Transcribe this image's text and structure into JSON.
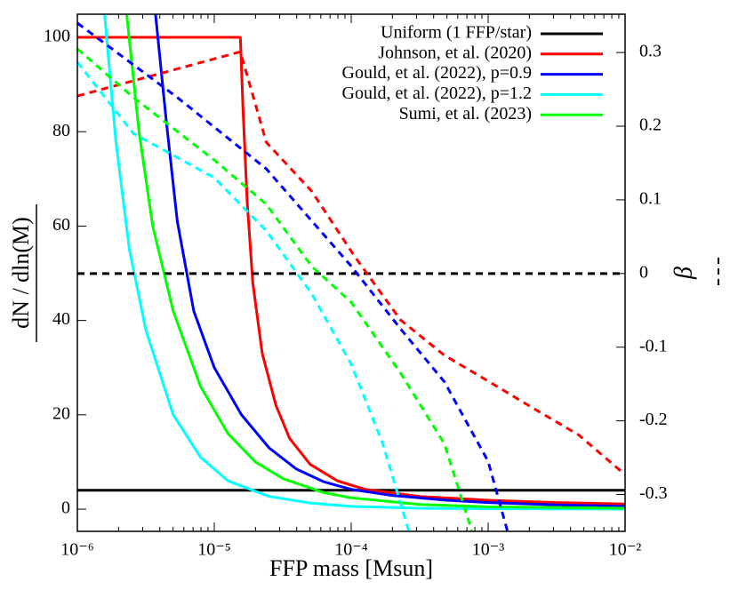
{
  "chart_data": {
    "type": "line",
    "xlabel": "FFP mass [Msun]",
    "ylabel": "dN / dln(M)",
    "y2label": "β",
    "xscale": "log",
    "xlim": [
      1e-06,
      0.01
    ],
    "xticks": [
      {
        "value": 1e-06,
        "label": "10⁻⁶"
      },
      {
        "value": 1e-05,
        "label": "10⁻⁵"
      },
      {
        "value": 0.0001,
        "label": "10⁻⁴"
      },
      {
        "value": 0.001,
        "label": "10⁻³"
      },
      {
        "value": 0.01,
        "label": "10⁻²"
      }
    ],
    "ylim": [
      -4.7,
      104.9
    ],
    "yticks": [
      0,
      20,
      40,
      60,
      80,
      100
    ],
    "y2lim": [
      -0.35,
      0.352
    ],
    "y2ticks": [
      -0.3,
      -0.2,
      -0.1,
      0,
      0.1,
      0.2,
      0.3
    ],
    "legend": "upper right",
    "series": [
      {
        "name": "Uniform (1 FFP/star)",
        "color": "#000000",
        "dashed": false,
        "axis": "y",
        "x": [
          1e-06,
          0.01
        ],
        "values": [
          4,
          4
        ]
      },
      {
        "name": "Johnson, et al. (2020)",
        "color": "#ff0000",
        "dashed": false,
        "axis": "y",
        "x": [
          1e-06,
          1.55e-05,
          1.62e-05,
          1.74e-05,
          1.91e-05,
          2.24e-05,
          2.82e-05,
          3.55e-05,
          5.01e-05,
          7.94e-05,
          0.000126,
          0.000316,
          0.001,
          0.00316,
          0.01
        ],
        "values": [
          100,
          100,
          85,
          65,
          48,
          33,
          22,
          15,
          9.5,
          6,
          4.2,
          2.7,
          1.9,
          1.4,
          1.1
        ]
      },
      {
        "name": "Gould, et al. (2022), p=0.9",
        "color": "#0000ff",
        "dashed": false,
        "axis": "y",
        "x": [
          3.72e-06,
          4.47e-06,
          5.37e-06,
          7.08e-06,
          1e-05,
          1.58e-05,
          2.51e-05,
          3.98e-05,
          6.31e-05,
          0.0001,
          0.0002,
          0.000501,
          0.001,
          0.00316,
          0.01
        ],
        "values": [
          105,
          82,
          61,
          42,
          30,
          20,
          13,
          8.5,
          5.8,
          4.2,
          2.9,
          1.9,
          1.4,
          0.9,
          0.6
        ]
      },
      {
        "name": "Gould, et al. (2022), p=1.2",
        "color": "#00ffff",
        "dashed": false,
        "axis": "y",
        "x": [
          1.58e-06,
          1.91e-06,
          2.4e-06,
          3.16e-06,
          5.01e-06,
          7.94e-06,
          1.26e-05,
          2.51e-05,
          5.01e-05,
          0.0001,
          0.000316,
          0.001,
          0.01
        ],
        "values": [
          105,
          78,
          55,
          38,
          20,
          11,
          6,
          2.7,
          1.3,
          0.6,
          0.2,
          0.1,
          0
        ]
      },
      {
        "name": "Sumi, et al. (2023)",
        "color": "#00ff00",
        "dashed": false,
        "axis": "y",
        "x": [
          2.29e-06,
          2.82e-06,
          3.55e-06,
          5.01e-06,
          7.94e-06,
          1.26e-05,
          2e-05,
          3.16e-05,
          6.31e-05,
          0.0001,
          0.000316,
          0.001,
          0.01
        ],
        "values": [
          105,
          80,
          60,
          42,
          26,
          16,
          10,
          6.5,
          3.5,
          2.4,
          1,
          0.5,
          0.2
        ]
      },
      {
        "color": "#000000",
        "dashed": true,
        "axis": "y2",
        "x": [
          1e-06,
          0.01
        ],
        "values": [
          0,
          0
        ]
      },
      {
        "color": "#ff0000",
        "dashed": true,
        "axis": "y2",
        "x": [
          1e-06,
          1.55e-05,
          2.4e-05,
          5.13e-05,
          0.000107,
          0.000229,
          0.000479,
          0.00102,
          0.00214,
          0.00457,
          0.01
        ],
        "values": [
          0.241,
          0.301,
          0.178,
          0.112,
          0.022,
          -0.063,
          -0.111,
          -0.147,
          -0.183,
          -0.219,
          -0.273
        ]
      },
      {
        "color": "#0000ff",
        "dashed": true,
        "axis": "y2",
        "x": [
          1e-06,
          5.37e-06,
          2.4e-05,
          0.0001,
          0.000229,
          0.000479,
          0.001,
          0.00138
        ],
        "values": [
          0.34,
          0.239,
          0.142,
          0.01,
          -0.075,
          -0.147,
          -0.255,
          -0.349
        ]
      },
      {
        "color": "#00ffff",
        "dashed": true,
        "axis": "y2",
        "x": [
          1e-06,
          2.57e-06,
          1e-05,
          2.4e-05,
          5.13e-05,
          0.0001,
          0.00017,
          0.000263
        ],
        "values": [
          0.287,
          0.19,
          0.13,
          0.058,
          -0.027,
          -0.123,
          -0.231,
          -0.349
        ]
      },
      {
        "color": "#00ff00",
        "dashed": true,
        "axis": "y2",
        "x": [
          1e-06,
          2.57e-06,
          1e-05,
          2.4e-05,
          5.13e-05,
          0.0001,
          0.000229,
          0.000479,
          0.000759
        ],
        "values": [
          0.305,
          0.239,
          0.154,
          0.094,
          0.01,
          -0.039,
          -0.135,
          -0.231,
          -0.349
        ]
      }
    ]
  }
}
